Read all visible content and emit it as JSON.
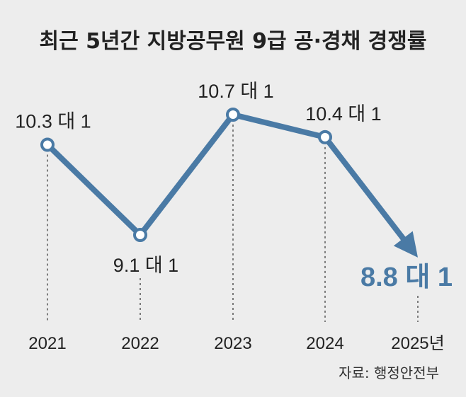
{
  "chart_data": {
    "type": "line",
    "title": "최근 5년간 지방공무원 9급 공·경채 경쟁률",
    "categories": [
      "2021",
      "2022",
      "2023",
      "2024",
      "2025년"
    ],
    "values": [
      10.3,
      9.1,
      10.7,
      10.4,
      8.8
    ],
    "labels": [
      "10.3 대 1",
      "9.1 대 1",
      "10.7 대 1",
      "10.4 대 1",
      "8.8 대 1"
    ],
    "highlight_index": 4,
    "unit": "대 1",
    "xlabel": "",
    "ylabel": "",
    "grid": false,
    "source": "자료: 행정안전부"
  },
  "colors": {
    "line": "#4a7aa5",
    "highlight": "#4a7aa5",
    "background": "#ededed",
    "text": "#222222"
  }
}
